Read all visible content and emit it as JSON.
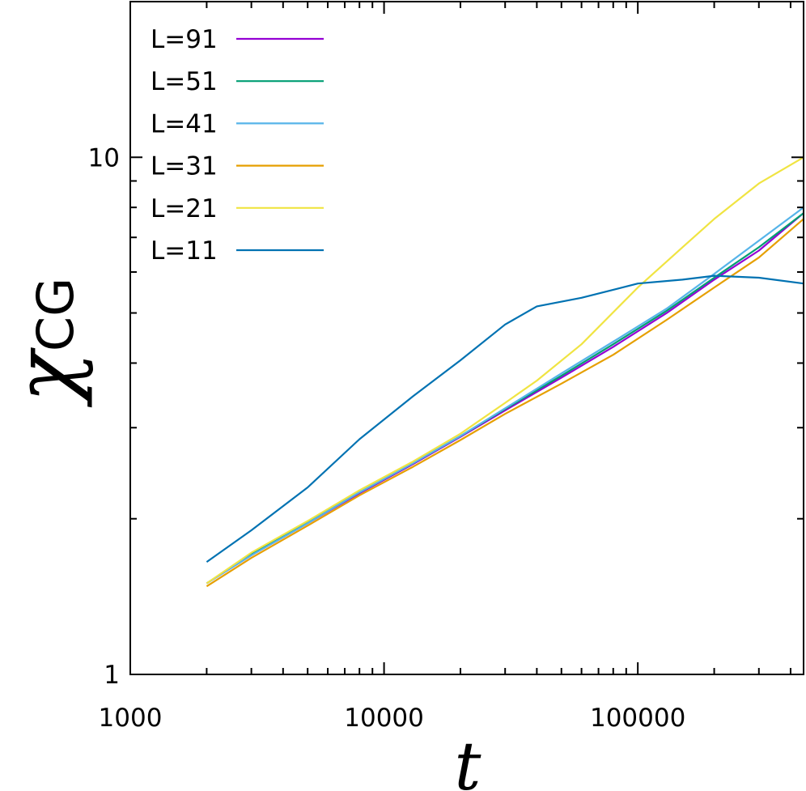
{
  "chart_data": {
    "type": "line",
    "title": "",
    "xlabel": "t",
    "ylabel": "χ",
    "ylabel_subscript": "CG",
    "xscale": "log",
    "yscale": "log",
    "xlim": [
      1000,
      450000
    ],
    "ylim": [
      1,
      20
    ],
    "xticks": [
      1000,
      10000,
      100000
    ],
    "xtick_labels": [
      "1000",
      "10000",
      "100000"
    ],
    "yticks": [
      1,
      10
    ],
    "ytick_labels": [
      "1",
      "10"
    ],
    "grid": false,
    "legend_position": "top-left",
    "series": [
      {
        "name": "L=91",
        "color": "#9400d3",
        "x": [
          2000,
          3000,
          5000,
          8000,
          13000,
          20000,
          30000,
          50000,
          80000,
          130000,
          200000,
          300000,
          450000
        ],
        "y": [
          1.5,
          1.7,
          1.96,
          2.24,
          2.55,
          2.88,
          3.24,
          3.75,
          4.3,
          5.0,
          5.8,
          6.6,
          7.8
        ]
      },
      {
        "name": "L=51",
        "color": "#009e73",
        "x": [
          2000,
          3000,
          5000,
          8000,
          13000,
          20000,
          30000,
          50000,
          80000,
          130000,
          200000,
          300000,
          450000
        ],
        "y": [
          1.5,
          1.71,
          1.97,
          2.25,
          2.56,
          2.89,
          3.26,
          3.78,
          4.35,
          5.05,
          5.85,
          6.7,
          7.8
        ]
      },
      {
        "name": "L=41",
        "color": "#56b4e9",
        "x": [
          2000,
          3000,
          5000,
          8000,
          13000,
          20000,
          30000,
          50000,
          80000,
          130000,
          200000,
          300000,
          450000
        ],
        "y": [
          1.5,
          1.7,
          1.96,
          2.25,
          2.56,
          2.89,
          3.27,
          3.82,
          4.4,
          5.1,
          5.95,
          6.9,
          8.0
        ]
      },
      {
        "name": "L=31",
        "color": "#e69f00",
        "x": [
          2000,
          3000,
          5000,
          8000,
          13000,
          20000,
          30000,
          50000,
          80000,
          130000,
          200000,
          300000,
          450000
        ],
        "y": [
          1.48,
          1.68,
          1.94,
          2.22,
          2.52,
          2.84,
          3.19,
          3.65,
          4.15,
          4.85,
          5.6,
          6.4,
          7.6
        ]
      },
      {
        "name": "L=21",
        "color": "#f0e442",
        "x": [
          2000,
          3000,
          5000,
          8000,
          13000,
          20000,
          30000,
          40000,
          60000,
          100000,
          150000,
          200000,
          300000,
          450000
        ],
        "y": [
          1.5,
          1.72,
          1.98,
          2.27,
          2.58,
          2.92,
          3.35,
          3.7,
          4.35,
          5.6,
          6.7,
          7.6,
          8.9,
          10.0
        ]
      },
      {
        "name": "L=11",
        "color": "#0072b2",
        "x": [
          2000,
          3000,
          5000,
          8000,
          13000,
          20000,
          30000,
          40000,
          60000,
          100000,
          150000,
          200000,
          300000,
          450000
        ],
        "y": [
          1.65,
          1.9,
          2.3,
          2.85,
          3.45,
          4.05,
          4.75,
          5.15,
          5.35,
          5.7,
          5.8,
          5.9,
          5.85,
          5.7
        ]
      }
    ]
  }
}
